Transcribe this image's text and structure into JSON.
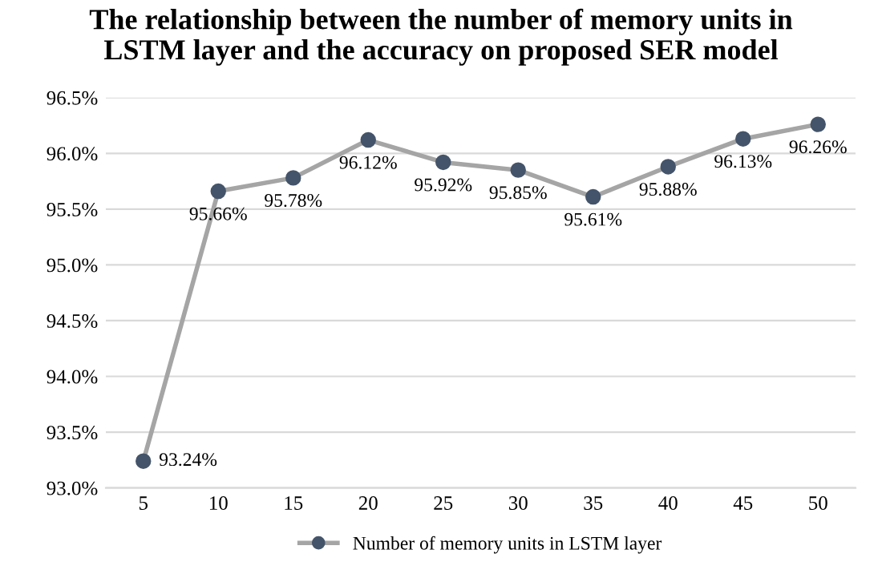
{
  "chart_data": {
    "type": "line",
    "title": "The relationship between the number of memory units in\nLSTM layer and the accuracy on proposed SER model",
    "categories": [
      "5",
      "10",
      "15",
      "20",
      "25",
      "30",
      "35",
      "40",
      "45",
      "50"
    ],
    "series": [
      {
        "name": "Number of memory units in LSTM layer",
        "color": "#a5a5a5",
        "colors": [
          "#44546a",
          "#44546a",
          "#44546a",
          "#44546a",
          "#44546a",
          "#44546a",
          "#44546a",
          "#44546a",
          "#44546a",
          "#44546a"
        ],
        "values": [
          93.24,
          95.66,
          95.78,
          96.12,
          95.92,
          95.85,
          95.61,
          95.88,
          96.13,
          96.26
        ],
        "value_labels": [
          "93.24%",
          "95.66%",
          "95.78%",
          "96.12%",
          "95.92%",
          "95.85%",
          "95.61%",
          "95.88%",
          "96.13%",
          "96.26%"
        ]
      }
    ],
    "ylim": [
      93.0,
      96.5
    ],
    "yticks": [
      {
        "value": 93.0,
        "label": "93.0%"
      },
      {
        "value": 93.5,
        "label": "93.5%"
      },
      {
        "value": 94.0,
        "label": "94.0%"
      },
      {
        "value": 94.5,
        "label": "94.5%"
      },
      {
        "value": 95.0,
        "label": "95.0%"
      },
      {
        "value": 95.5,
        "label": "95.5%"
      },
      {
        "value": 96.0,
        "label": "96.0%"
      },
      {
        "value": 96.5,
        "label": "96.5%"
      }
    ],
    "grid": "y",
    "legend": "bottom",
    "marker": "circle",
    "line_style": "solid"
  }
}
